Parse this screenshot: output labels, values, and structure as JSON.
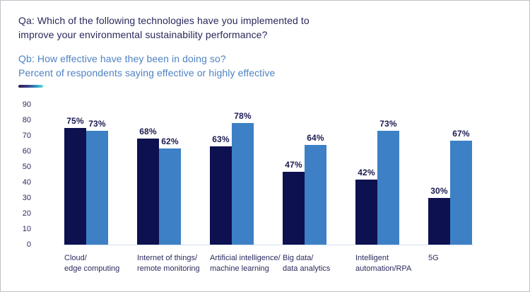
{
  "header": {
    "qa_line1": "Qa: Which of the following technologies have you implemented to",
    "qa_line2": "improve your environmental sustainability performance?",
    "qb_line1": "Qb: How effective have they been in doing so?",
    "qb_line2": "Percent of respondents saying effective or highly effective"
  },
  "colors": {
    "dark_bar": "#0d1150",
    "light_bar": "#3d80c5",
    "qa_text": "#28285c",
    "qb_text": "#4e82c3",
    "value_label": "#1b1b52",
    "axis_text": "#2b2b5e",
    "baseline": "#d3dfef",
    "dash_gradient_start": "#241d58",
    "dash_gradient_end": "#5ce0da",
    "frame_border": "#bfc0c9"
  },
  "chart_data": {
    "type": "bar",
    "title": "Qa: Which of the following technologies have you implemented to improve your environmental sustainability performance?",
    "subtitle": "Qb: How effective have they been in doing so? Percent of respondents saying effective or highly effective",
    "categories": [
      [
        "Cloud/",
        "edge computing"
      ],
      [
        "Internet of things/",
        "remote monitoring"
      ],
      [
        "Artificial intelligence/",
        "machine learning"
      ],
      [
        "Big data/",
        "data analytics"
      ],
      [
        "Intelligent",
        "automation/RPA"
      ],
      [
        "5G"
      ]
    ],
    "series": [
      {
        "name": "Qa: implemented",
        "color": "#0d1150",
        "values": [
          75,
          68,
          63,
          47,
          42,
          30
        ]
      },
      {
        "name": "Qb: effective or highly effective",
        "color": "#3d80c5",
        "values": [
          73,
          62,
          78,
          64,
          73,
          67
        ]
      }
    ],
    "value_suffix": "%",
    "yticks": [
      0,
      10,
      20,
      30,
      40,
      50,
      60,
      70,
      80,
      90
    ],
    "ylim": [
      0,
      90
    ],
    "grid": false,
    "legend": "none",
    "xlabel": "",
    "ylabel": ""
  }
}
